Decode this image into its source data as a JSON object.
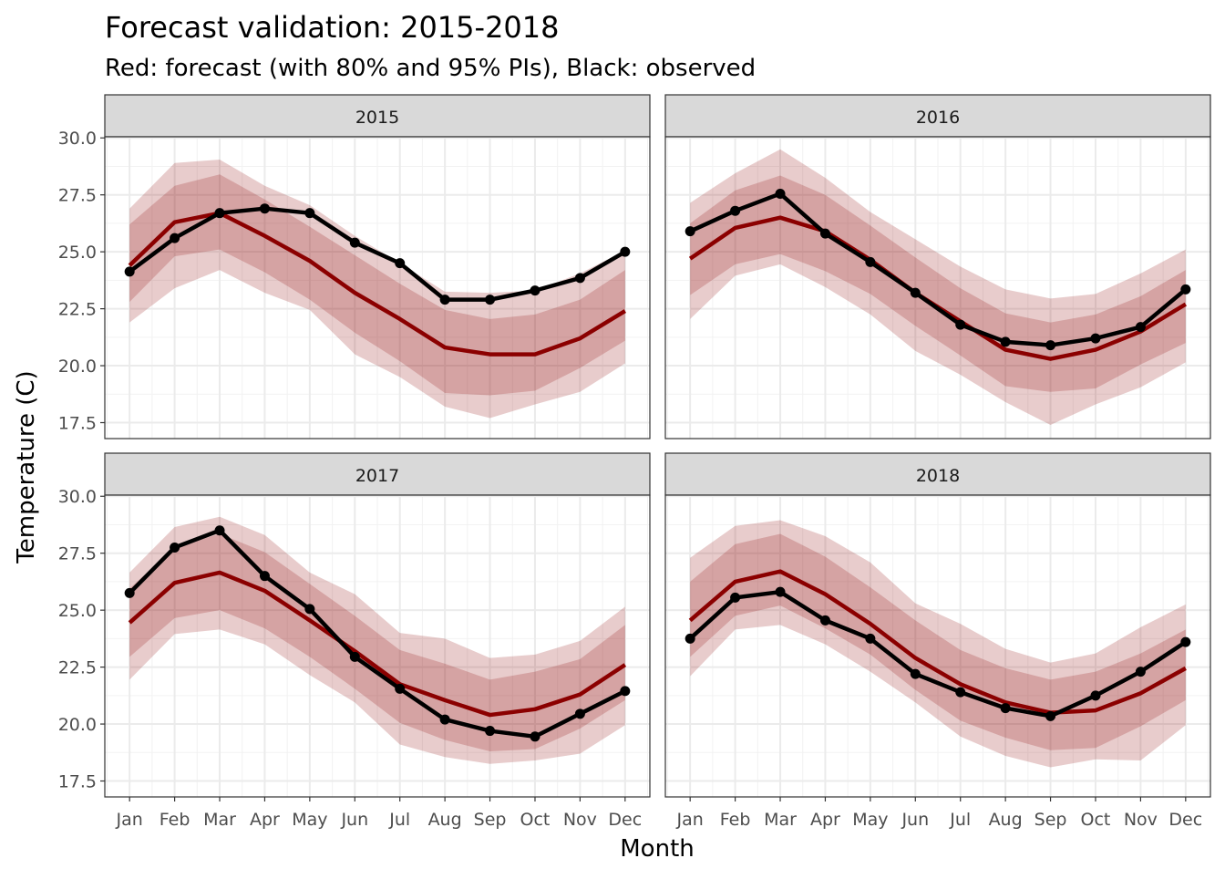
{
  "chart_data": {
    "type": "line",
    "title": "Forecast validation: 2015-2018",
    "subtitle": "Red: forecast (with 80% and 95% PIs), Black: observed",
    "xlabel": "Month",
    "ylabel": "Temperature (C)",
    "categories": [
      "Jan",
      "Feb",
      "Mar",
      "Apr",
      "May",
      "Jun",
      "Jul",
      "Aug",
      "Sep",
      "Oct",
      "Nov",
      "Dec"
    ],
    "yticks": [
      "17.5",
      "20.0",
      "22.5",
      "25.0",
      "27.5",
      "30.0"
    ],
    "ylim": [
      16.8,
      30.05
    ],
    "grid": true,
    "colors": {
      "forecast": "#8b0000",
      "observed": "#000000",
      "band": "#8b0000",
      "strip": "#d9d9d9"
    },
    "facets": [
      {
        "label": "2015",
        "observed": [
          24.13,
          25.6,
          26.7,
          26.9,
          26.7,
          25.4,
          24.5,
          22.9,
          22.9,
          23.3,
          23.85,
          25.0
        ],
        "forecast": [
          24.4,
          26.3,
          26.7,
          25.7,
          24.6,
          23.2,
          22.05,
          20.8,
          20.5,
          20.5,
          21.2,
          22.4
        ],
        "lo80": [
          22.8,
          24.8,
          25.1,
          24.1,
          22.9,
          21.45,
          20.2,
          18.8,
          18.7,
          18.9,
          19.9,
          21.1
        ],
        "hi80": [
          26.2,
          27.9,
          28.4,
          27.3,
          26.1,
          24.85,
          23.6,
          22.45,
          22.05,
          22.25,
          22.9,
          24.2
        ],
        "lo95": [
          21.9,
          23.4,
          24.2,
          23.2,
          22.45,
          20.5,
          19.5,
          18.2,
          17.7,
          18.3,
          18.85,
          20.1
        ],
        "hi95": [
          26.9,
          28.9,
          29.05,
          27.9,
          27.05,
          25.7,
          24.5,
          23.25,
          23.2,
          23.3,
          24.05,
          25.05
        ]
      },
      {
        "label": "2016",
        "observed": [
          25.9,
          26.8,
          27.55,
          25.8,
          24.55,
          23.2,
          21.8,
          21.05,
          20.9,
          21.2,
          21.7,
          23.35
        ],
        "forecast": [
          24.7,
          26.05,
          26.5,
          25.9,
          24.65,
          23.2,
          21.95,
          20.7,
          20.3,
          20.7,
          21.5,
          22.7
        ],
        "lo80": [
          23.1,
          24.45,
          24.9,
          24.15,
          23.15,
          21.75,
          20.45,
          19.1,
          18.85,
          19.0,
          20.05,
          21.0
        ],
        "hi80": [
          26.25,
          27.7,
          28.35,
          27.5,
          26.15,
          24.75,
          23.4,
          22.3,
          21.9,
          22.25,
          23.05,
          24.2
        ],
        "lo95": [
          22.05,
          23.95,
          24.45,
          23.45,
          22.25,
          20.65,
          19.6,
          18.4,
          17.4,
          18.3,
          19.05,
          20.15
        ],
        "hi95": [
          27.15,
          28.45,
          29.5,
          28.25,
          26.75,
          25.55,
          24.35,
          23.35,
          22.95,
          23.15,
          24.05,
          25.1
        ]
      },
      {
        "label": "2017",
        "observed": [
          25.75,
          27.75,
          28.5,
          26.5,
          25.05,
          22.95,
          21.55,
          20.2,
          19.7,
          19.45,
          20.45,
          21.45
        ],
        "forecast": [
          24.45,
          26.2,
          26.65,
          25.85,
          24.55,
          23.2,
          21.75,
          21.05,
          20.4,
          20.65,
          21.3,
          22.6
        ],
        "lo80": [
          22.95,
          24.65,
          25.0,
          24.2,
          22.95,
          21.55,
          20.05,
          19.3,
          18.8,
          18.9,
          19.8,
          21.05
        ],
        "hi80": [
          25.95,
          27.75,
          28.35,
          27.55,
          26.15,
          24.75,
          23.25,
          22.65,
          21.95,
          22.3,
          22.85,
          24.35
        ],
        "lo95": [
          21.95,
          23.95,
          24.15,
          23.5,
          22.15,
          20.95,
          19.1,
          18.55,
          18.25,
          18.4,
          18.7,
          19.95
        ],
        "hi95": [
          26.65,
          28.65,
          29.1,
          28.3,
          26.65,
          25.7,
          24.0,
          23.75,
          22.9,
          23.05,
          23.65,
          25.15
        ]
      },
      {
        "label": "2018",
        "observed": [
          23.75,
          25.55,
          25.8,
          24.55,
          23.75,
          22.2,
          21.4,
          20.7,
          20.35,
          21.25,
          22.3,
          23.6
        ],
        "forecast": [
          24.55,
          26.25,
          26.7,
          25.7,
          24.4,
          22.9,
          21.75,
          20.95,
          20.5,
          20.6,
          21.35,
          22.45
        ],
        "lo80": [
          22.95,
          24.75,
          25.2,
          24.2,
          23.05,
          21.5,
          20.15,
          19.4,
          18.85,
          18.95,
          19.9,
          21.05
        ],
        "hi80": [
          26.25,
          27.9,
          28.35,
          27.35,
          26.0,
          24.55,
          23.25,
          22.45,
          21.95,
          22.3,
          23.1,
          24.15
        ],
        "lo95": [
          22.1,
          24.15,
          24.35,
          23.5,
          22.3,
          20.95,
          19.45,
          18.6,
          18.1,
          18.45,
          18.4,
          19.95
        ],
        "hi95": [
          27.3,
          28.7,
          28.95,
          28.25,
          27.1,
          25.3,
          24.4,
          23.3,
          22.7,
          23.1,
          24.25,
          25.25
        ]
      }
    ]
  }
}
